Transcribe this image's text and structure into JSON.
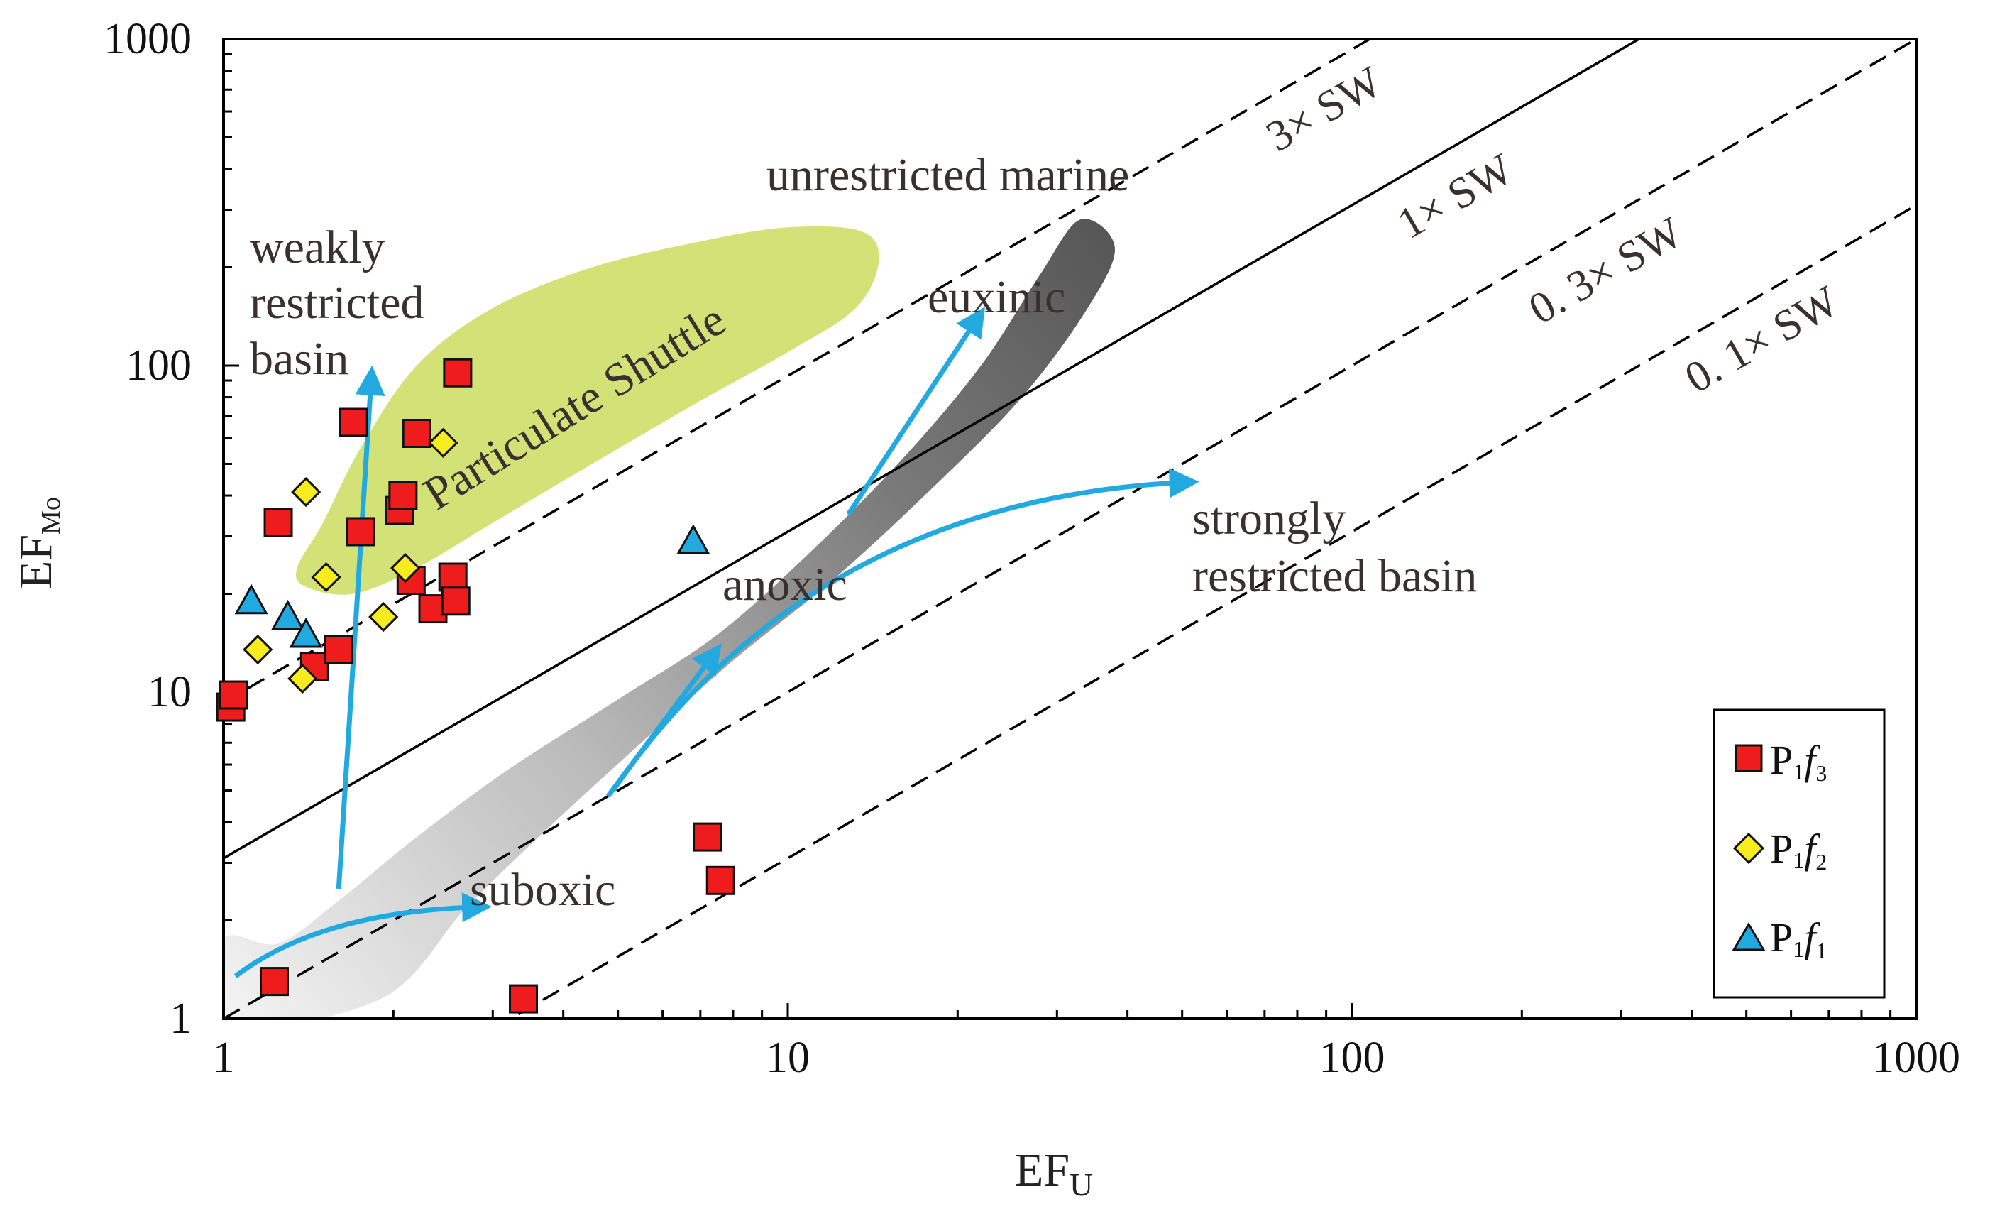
{
  "chart_data": {
    "type": "scatter",
    "title": "",
    "xlabel": {
      "main": "EF",
      "sub": "U"
    },
    "ylabel": {
      "main": "EF",
      "sub": "Mo"
    },
    "x_scale": "log",
    "y_scale": "log",
    "xlim": [
      1,
      1000
    ],
    "ylim": [
      1,
      1000
    ],
    "x_ticks": [
      "1",
      "10",
      "100",
      "1000"
    ],
    "y_ticks": [
      "1",
      "10",
      "100",
      "1000"
    ],
    "reference_lines": [
      {
        "label": "3× SW",
        "ratio": 9.3,
        "style": "dashed"
      },
      {
        "label": "1× SW",
        "ratio": 3.1,
        "style": "solid"
      },
      {
        "label": "0. 3× SW",
        "ratio": 1.0,
        "style": "dashed"
      },
      {
        "label": "0. 1× SW",
        "ratio": 0.31,
        "style": "dashed"
      }
    ],
    "regions": [
      {
        "name": "Particulate Shuttle",
        "color": "#d3e276"
      },
      {
        "name": "unrestricted marine to euxinic trend",
        "color": "#5a5a5a"
      }
    ],
    "annotations": {
      "weakly": "weakly",
      "restricted": "restricted",
      "basin": "basin",
      "particulate": "Particulate Shuttle",
      "unrestricted": "unrestricted marine",
      "euxinic": "euxinic",
      "anoxic": "anoxic",
      "suboxic": "suboxic",
      "strongly": "strongly",
      "strongly_restricted": "restricted basin"
    },
    "legend_position": "bottom-right",
    "series": [
      {
        "name": "P1f3",
        "legend": {
          "main": "P",
          "sub1": "1",
          "italic": "f",
          "sub2": "3"
        },
        "marker": "square",
        "color": "#ee1c1c",
        "points": [
          [
            1.03,
            9.0
          ],
          [
            1.04,
            9.8
          ],
          [
            1.23,
            1.3
          ],
          [
            1.25,
            33
          ],
          [
            1.45,
            12
          ],
          [
            1.6,
            13.5
          ],
          [
            1.7,
            67
          ],
          [
            1.75,
            31
          ],
          [
            2.05,
            36
          ],
          [
            2.08,
            40
          ],
          [
            2.15,
            22
          ],
          [
            2.2,
            62
          ],
          [
            2.35,
            18
          ],
          [
            2.55,
            22.5
          ],
          [
            2.58,
            19
          ],
          [
            2.6,
            95
          ],
          [
            3.4,
            1.15
          ],
          [
            7.2,
            3.6
          ],
          [
            7.6,
            2.65
          ]
        ]
      },
      {
        "name": "P1f2",
        "legend": {
          "main": "P",
          "sub1": "1",
          "italic": "f",
          "sub2": "2"
        },
        "marker": "diamond",
        "color": "#f7ed1e",
        "points": [
          [
            1.15,
            13.5
          ],
          [
            1.38,
            11
          ],
          [
            1.4,
            41
          ],
          [
            1.52,
            22.5
          ],
          [
            1.92,
            17
          ],
          [
            2.1,
            24
          ],
          [
            2.45,
            58
          ]
        ]
      },
      {
        "name": "P1f1",
        "legend": {
          "main": "P",
          "sub1": "1",
          "italic": "f",
          "sub2": "1"
        },
        "marker": "triangle",
        "color": "#22a9e0",
        "points": [
          [
            1.12,
            19
          ],
          [
            1.3,
            17
          ],
          [
            1.4,
            15
          ],
          [
            6.8,
            29
          ]
        ]
      }
    ],
    "trend_arrows": [
      {
        "from": [
          1.6,
          2.5
        ],
        "to": [
          1.83,
          95
        ],
        "curve": "straight"
      },
      {
        "from": [
          1.05,
          1.35
        ],
        "to": [
          2.9,
          2.2
        ],
        "curve": "curved"
      },
      {
        "from": [
          4.8,
          4.8
        ],
        "to": [
          7.5,
          13.5
        ],
        "curve": "straight"
      },
      {
        "from": [
          4.9,
          5.0
        ],
        "to": [
          52,
          44
        ],
        "curve": "curved"
      },
      {
        "from": [
          12.8,
          35
        ],
        "to": [
          22,
          145
        ],
        "curve": "straight"
      }
    ]
  }
}
